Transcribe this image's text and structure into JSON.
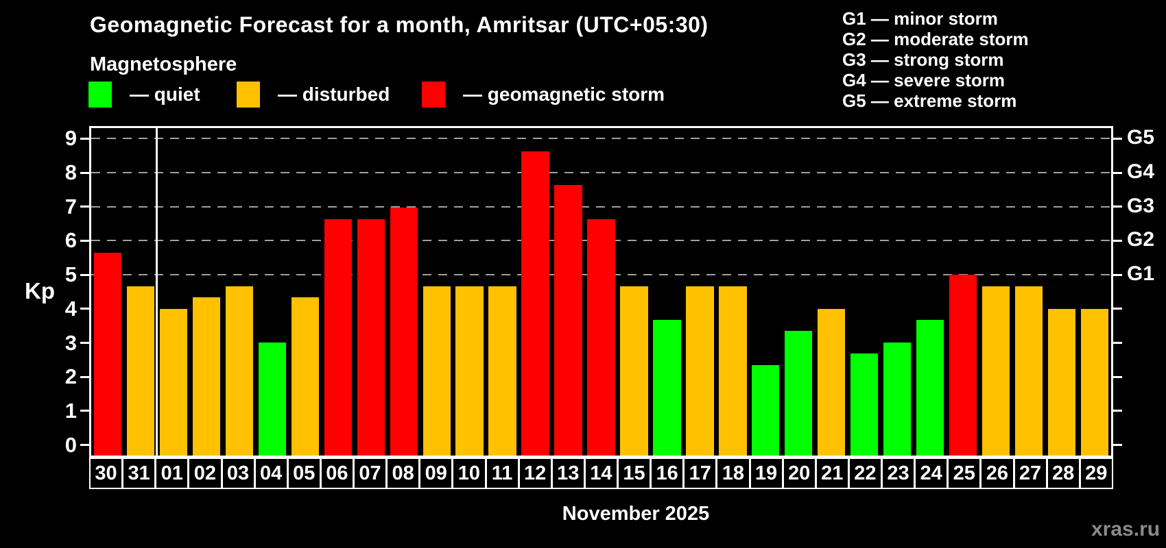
{
  "title": "Geomagnetic Forecast for a month, Amritsar (UTC+05:30)",
  "subtitle": "Magnetosphere",
  "legend": {
    "quiet_label": "— quiet",
    "disturbed_label": "— disturbed",
    "storm_label": "— geomagnetic storm"
  },
  "g_scale_legend": [
    "G1 — minor storm",
    "G2 — moderate storm",
    "G3 — strong storm",
    "G4 — severe storm",
    "G5 — extreme storm"
  ],
  "colors": {
    "quiet": "#00ff00",
    "disturbed": "#ffc100",
    "storm": "#ff0000",
    "grid": "#a0a0a0",
    "axis": "#ffffff",
    "text": "#ffffff",
    "watermark": "#8a8a8a",
    "background": "#000000"
  },
  "y_axis": {
    "label": "Kp",
    "ticks": [
      0,
      1,
      2,
      3,
      4,
      5,
      6,
      7,
      8,
      9
    ]
  },
  "right_axis": {
    "labels": [
      {
        "text": "G1",
        "value": 5
      },
      {
        "text": "G2",
        "value": 6
      },
      {
        "text": "G3",
        "value": 7
      },
      {
        "text": "G4",
        "value": 8
      },
      {
        "text": "G5",
        "value": 9
      }
    ]
  },
  "x_axis": {
    "label": "November 2025"
  },
  "watermark": "xras.ru",
  "chart_data": {
    "type": "bar",
    "title": "Geomagnetic Forecast for a month, Amritsar (UTC+05:30)",
    "xlabel": "November 2025",
    "ylabel": "Kp",
    "ylim": [
      -0.37,
      9.37
    ],
    "grid_values": [
      5,
      6,
      7,
      8,
      9
    ],
    "legend_position": "top-left",
    "month_separator_after_index": 1,
    "level_thresholds": {
      "disturbed_from_kp": 4,
      "storm_from_kp": 5
    },
    "days": [
      {
        "day": "30",
        "kp": 5.67,
        "level": "storm"
      },
      {
        "day": "31",
        "kp": 4.67,
        "level": "disturbed"
      },
      {
        "day": "01",
        "kp": 4.0,
        "level": "disturbed"
      },
      {
        "day": "02",
        "kp": 4.33,
        "level": "disturbed"
      },
      {
        "day": "03",
        "kp": 4.67,
        "level": "disturbed"
      },
      {
        "day": "04",
        "kp": 3.0,
        "level": "quiet"
      },
      {
        "day": "05",
        "kp": 4.33,
        "level": "disturbed"
      },
      {
        "day": "06",
        "kp": 6.67,
        "level": "storm"
      },
      {
        "day": "07",
        "kp": 6.67,
        "level": "storm"
      },
      {
        "day": "08",
        "kp": 7.0,
        "level": "storm"
      },
      {
        "day": "09",
        "kp": 4.67,
        "level": "disturbed"
      },
      {
        "day": "10",
        "kp": 4.67,
        "level": "disturbed"
      },
      {
        "day": "11",
        "kp": 4.67,
        "level": "disturbed"
      },
      {
        "day": "12",
        "kp": 8.67,
        "level": "storm"
      },
      {
        "day": "13",
        "kp": 7.67,
        "level": "storm"
      },
      {
        "day": "14",
        "kp": 6.67,
        "level": "storm"
      },
      {
        "day": "15",
        "kp": 4.67,
        "level": "disturbed"
      },
      {
        "day": "16",
        "kp": 3.67,
        "level": "quiet"
      },
      {
        "day": "17",
        "kp": 4.67,
        "level": "disturbed"
      },
      {
        "day": "18",
        "kp": 4.67,
        "level": "disturbed"
      },
      {
        "day": "19",
        "kp": 2.33,
        "level": "quiet"
      },
      {
        "day": "20",
        "kp": 3.33,
        "level": "quiet"
      },
      {
        "day": "21",
        "kp": 4.0,
        "level": "disturbed"
      },
      {
        "day": "22",
        "kp": 2.67,
        "level": "quiet"
      },
      {
        "day": "23",
        "kp": 3.0,
        "level": "quiet"
      },
      {
        "day": "24",
        "kp": 3.67,
        "level": "quiet"
      },
      {
        "day": "25",
        "kp": 5.0,
        "level": "storm"
      },
      {
        "day": "26",
        "kp": 4.67,
        "level": "disturbed"
      },
      {
        "day": "27",
        "kp": 4.67,
        "level": "disturbed"
      },
      {
        "day": "28",
        "kp": 4.0,
        "level": "disturbed"
      },
      {
        "day": "29",
        "kp": 4.0,
        "level": "disturbed"
      }
    ]
  }
}
